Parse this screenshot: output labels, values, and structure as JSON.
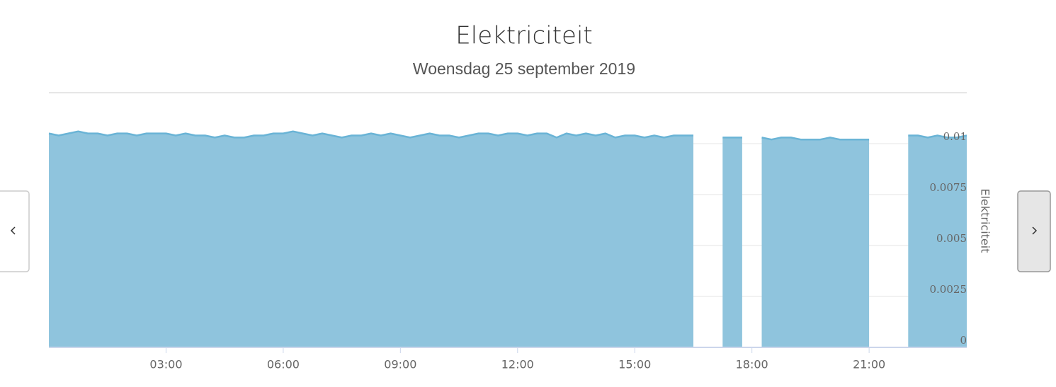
{
  "chart_data": {
    "type": "area",
    "title": "Elektriciteit",
    "subtitle": "Woensdag 25 september 2019",
    "y_label": "Elektriciteit",
    "x": [
      0,
      0.25,
      0.5,
      0.75,
      1,
      1.25,
      1.5,
      1.75,
      2,
      2.25,
      2.5,
      2.75,
      3,
      3.25,
      3.5,
      3.75,
      4,
      4.25,
      4.5,
      4.75,
      5,
      5.25,
      5.5,
      5.75,
      6,
      6.25,
      6.5,
      6.75,
      7,
      7.25,
      7.5,
      7.75,
      8,
      8.25,
      8.5,
      8.75,
      9,
      9.25,
      9.5,
      9.75,
      10,
      10.25,
      10.5,
      10.75,
      11,
      11.25,
      11.5,
      11.75,
      12,
      12.25,
      12.5,
      12.75,
      13,
      13.25,
      13.5,
      13.75,
      14,
      14.25,
      14.5,
      14.75,
      15,
      15.25,
      15.5,
      15.75,
      16,
      16.25,
      16.5,
      16.75,
      17,
      17.25,
      17.5,
      17.75,
      18,
      18.25,
      18.5,
      18.75,
      19,
      19.25,
      19.5,
      19.75,
      20,
      20.25,
      20.5,
      20.75,
      21,
      21.25,
      21.5,
      21.75,
      22,
      22.25,
      22.5,
      22.75,
      23,
      23.25,
      23.5
    ],
    "series": [
      {
        "name": "Elektriciteit",
        "color": "#8fc4dd",
        "line_color": "#6ab4d6",
        "values": [
          0.0105,
          0.0104,
          0.0105,
          0.0106,
          0.0105,
          0.0105,
          0.0104,
          0.0105,
          0.0105,
          0.0104,
          0.0105,
          0.0105,
          0.0105,
          0.0104,
          0.0105,
          0.0104,
          0.0104,
          0.0103,
          0.0104,
          0.0103,
          0.0103,
          0.0104,
          0.0104,
          0.0105,
          0.0105,
          0.0106,
          0.0105,
          0.0104,
          0.0105,
          0.0104,
          0.0103,
          0.0104,
          0.0104,
          0.0105,
          0.0104,
          0.0105,
          0.0104,
          0.0103,
          0.0104,
          0.0105,
          0.0104,
          0.0104,
          0.0103,
          0.0104,
          0.0105,
          0.0105,
          0.0104,
          0.0105,
          0.0105,
          0.0104,
          0.0105,
          0.0105,
          0.0103,
          0.0105,
          0.0104,
          0.0105,
          0.0104,
          0.0105,
          0.0103,
          0.0104,
          0.0104,
          0.0103,
          0.0104,
          0.0103,
          0.0104,
          0.0104,
          0.0104,
          null,
          null,
          0.0103,
          0.0103,
          0.0103,
          null,
          0.0103,
          0.0102,
          0.0103,
          0.0103,
          0.0102,
          0.0102,
          0.0102,
          0.0103,
          0.0102,
          0.0102,
          0.0102,
          0.0102,
          null,
          null,
          null,
          0.0104,
          0.0104,
          0.0103,
          0.0104,
          0.0103,
          0.0103,
          0.0104
        ]
      }
    ],
    "xlim": [
      0,
      23.5
    ],
    "xticks": [
      {
        "value": 3,
        "label": "03:00"
      },
      {
        "value": 6,
        "label": "06:00"
      },
      {
        "value": 9,
        "label": "09:00"
      },
      {
        "value": 12,
        "label": "12:00"
      },
      {
        "value": 15,
        "label": "15:00"
      },
      {
        "value": 18,
        "label": "18:00"
      },
      {
        "value": 21,
        "label": "21:00"
      }
    ],
    "ylim": [
      0,
      0.0125
    ],
    "yticks": [
      0,
      0.0025,
      0.005,
      0.0075,
      0.01
    ],
    "grid": true
  }
}
